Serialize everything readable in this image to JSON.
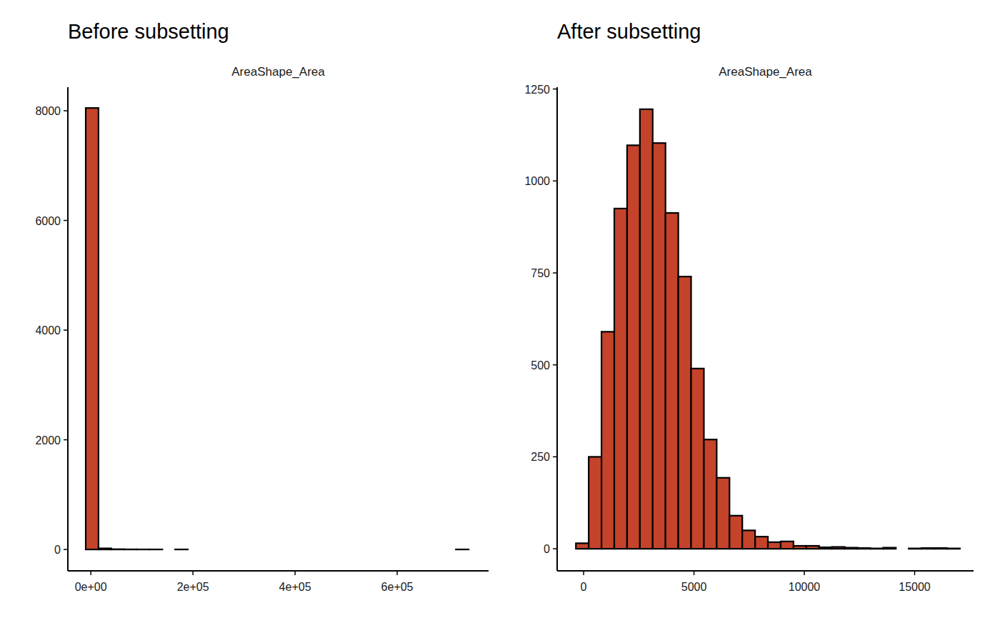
{
  "chart_data": [
    {
      "type": "histogram",
      "title": "Before subsetting",
      "subtitle": "AreaShape_Area",
      "color": "#c4432a",
      "bins": [
        -10000,
        15000,
        40000,
        65000,
        90000,
        115000,
        140000,
        165000,
        190000,
        215000,
        240000,
        265000,
        290000,
        315000,
        340000,
        365000,
        390000,
        415000,
        440000,
        465000,
        490000,
        515000,
        540000,
        565000,
        590000,
        615000,
        640000,
        665000,
        690000,
        715000,
        740000
      ],
      "values": [
        8050,
        20,
        5,
        2,
        1,
        1,
        0,
        1,
        0,
        0,
        0,
        0,
        0,
        0,
        0,
        0,
        0,
        0,
        0,
        0,
        0,
        0,
        0,
        0,
        0,
        0,
        0,
        0,
        0,
        1
      ],
      "xlim": [
        -45000,
        779000
      ],
      "xticks": [
        {
          "value": 0,
          "label": "0e+00"
        },
        {
          "value": 200000,
          "label": "2e+05"
        },
        {
          "value": 400000,
          "label": "4e+05"
        },
        {
          "value": 600000,
          "label": "6e+05"
        }
      ],
      "ylim": [
        -390,
        8430
      ],
      "yticks": [
        0,
        2000,
        4000,
        6000,
        8000
      ],
      "grid": false
    },
    {
      "type": "histogram",
      "title": "After subsetting",
      "subtitle": "AreaShape_Area",
      "color": "#c4432a",
      "bins": [
        -350,
        230,
        810,
        1390,
        1970,
        2550,
        3130,
        3710,
        4290,
        4870,
        5450,
        6030,
        6610,
        7190,
        7770,
        8350,
        8930,
        9510,
        10090,
        10670,
        11250,
        11830,
        12410,
        12990,
        13570,
        14150,
        14730,
        15310,
        15890,
        16470,
        17050
      ],
      "values": [
        15,
        250,
        590,
        925,
        1097,
        1195,
        1103,
        913,
        740,
        490,
        297,
        193,
        90,
        50,
        33,
        18,
        20,
        8,
        8,
        4,
        5,
        3,
        2,
        1,
        3,
        0,
        1,
        2,
        2,
        1
      ],
      "xlim": [
        -1200,
        17670
      ],
      "xticks": [
        0,
        5000,
        10000,
        15000
      ],
      "ylim": [
        -60,
        1255
      ],
      "yticks": [
        0,
        250,
        500,
        750,
        1000,
        1250
      ],
      "grid": false
    }
  ]
}
